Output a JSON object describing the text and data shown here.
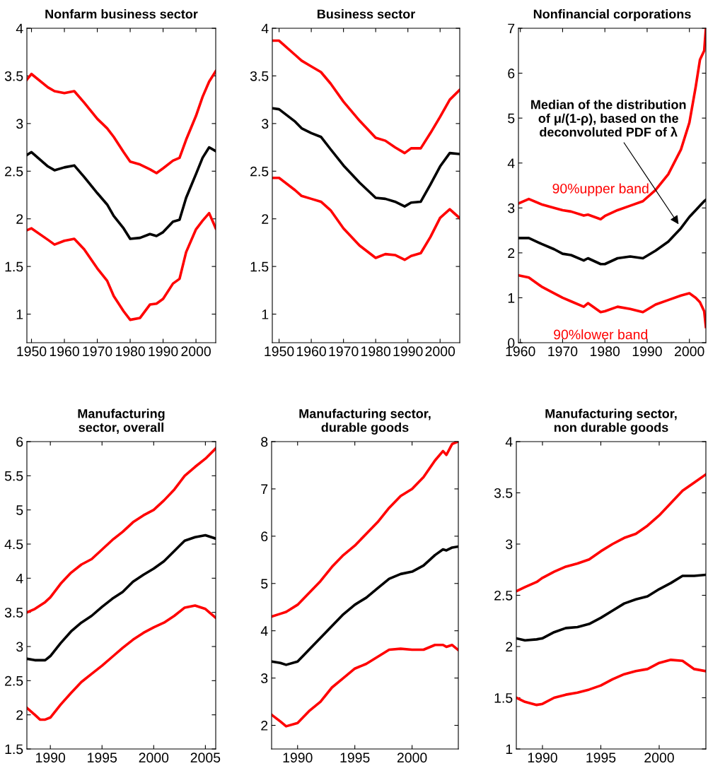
{
  "chart_data": [
    {
      "type": "line",
      "title": "Nonfarm business sector",
      "xlim": [
        1948.6,
        2006
      ],
      "xticks": [
        1950,
        1960,
        1970,
        1980,
        1990,
        2000
      ],
      "ylim": [
        0.7,
        4
      ],
      "yticks": [
        1,
        1.5,
        2,
        2.5,
        3,
        3.5,
        4
      ],
      "x": [
        1948.6,
        1950,
        1955,
        1957,
        1960,
        1963,
        1966,
        1970,
        1973,
        1975,
        1978,
        1980,
        1983,
        1986,
        1988,
        1990,
        1993,
        1995,
        1997,
        2000,
        2002,
        2004,
        2006
      ],
      "series": [
        {
          "color": "#ff0000",
          "values": [
            3.46,
            3.52,
            3.38,
            3.34,
            3.32,
            3.34,
            3.22,
            3.05,
            2.95,
            2.86,
            2.7,
            2.6,
            2.57,
            2.52,
            2.48,
            2.53,
            2.61,
            2.64,
            2.83,
            3.08,
            3.28,
            3.44,
            3.55
          ]
        },
        {
          "color": "#000000",
          "values": [
            2.67,
            2.7,
            2.55,
            2.51,
            2.54,
            2.56,
            2.44,
            2.27,
            2.15,
            2.03,
            1.9,
            1.79,
            1.8,
            1.84,
            1.82,
            1.86,
            1.97,
            1.99,
            2.22,
            2.47,
            2.64,
            2.75,
            2.71
          ]
        },
        {
          "color": "#ff0000",
          "values": [
            1.88,
            1.9,
            1.78,
            1.73,
            1.77,
            1.79,
            1.68,
            1.48,
            1.35,
            1.19,
            1.03,
            0.94,
            0.96,
            1.1,
            1.11,
            1.16,
            1.32,
            1.37,
            1.65,
            1.89,
            1.98,
            2.06,
            1.9
          ]
        }
      ]
    },
    {
      "type": "line",
      "title": "Business sector",
      "xlim": [
        1947.9,
        2006.1
      ],
      "xticks": [
        1950,
        1960,
        1970,
        1980,
        1990,
        2000
      ],
      "ylim": [
        0.7,
        4
      ],
      "yticks": [
        1,
        1.5,
        2,
        2.5,
        3,
        3.5,
        4
      ],
      "x": [
        1948,
        1950,
        1955,
        1957,
        1960,
        1963,
        1966,
        1970,
        1975,
        1980,
        1983,
        1986,
        1989,
        1991,
        1994,
        1997,
        2000,
        2003,
        2006
      ],
      "series": [
        {
          "color": "#ff0000",
          "values": [
            3.87,
            3.87,
            3.72,
            3.66,
            3.6,
            3.54,
            3.42,
            3.23,
            3.03,
            2.85,
            2.82,
            2.75,
            2.69,
            2.74,
            2.74,
            2.9,
            3.07,
            3.25,
            3.35
          ]
        },
        {
          "color": "#000000",
          "values": [
            3.16,
            3.15,
            3.02,
            2.95,
            2.9,
            2.86,
            2.73,
            2.56,
            2.38,
            2.22,
            2.21,
            2.18,
            2.13,
            2.17,
            2.18,
            2.36,
            2.55,
            2.69,
            2.68
          ]
        },
        {
          "color": "#ff0000",
          "values": [
            2.43,
            2.43,
            2.3,
            2.24,
            2.21,
            2.18,
            2.09,
            1.9,
            1.72,
            1.59,
            1.63,
            1.62,
            1.57,
            1.61,
            1.64,
            1.81,
            2.01,
            2.1,
            2.01
          ]
        }
      ]
    },
    {
      "type": "line",
      "title": "Nonfinancial corporations",
      "xlim": [
        1959.55,
        2003.9
      ],
      "xticks": [
        1960,
        1970,
        1980,
        1990,
        2000
      ],
      "ylim": [
        0,
        7
      ],
      "yticks": [
        0,
        1,
        2,
        3,
        4,
        5,
        6,
        7
      ],
      "x": [
        1959.6,
        1962,
        1965,
        1968,
        1970,
        1972,
        1975,
        1976,
        1979,
        1980,
        1983,
        1986,
        1989,
        1992,
        1995,
        1998,
        2000,
        2001.5,
        2002.5,
        2003.5,
        2003.9
      ],
      "series": [
        {
          "name": "90%upper band",
          "color": "#ff0000",
          "values": [
            3.1,
            3.2,
            3.08,
            3.0,
            2.95,
            2.92,
            2.83,
            2.85,
            2.75,
            2.82,
            2.95,
            3.05,
            3.15,
            3.4,
            3.75,
            4.3,
            4.9,
            5.7,
            6.3,
            6.5,
            7.0
          ]
        },
        {
          "color": "#000000",
          "values": [
            2.33,
            2.33,
            2.2,
            2.08,
            1.98,
            1.95,
            1.83,
            1.88,
            1.75,
            1.75,
            1.88,
            1.92,
            1.88,
            2.05,
            2.25,
            2.55,
            2.8,
            2.95,
            3.05,
            3.15,
            3.18
          ]
        },
        {
          "name": "90%lower band",
          "color": "#ff0000",
          "values": [
            1.5,
            1.45,
            1.25,
            1.1,
            1.0,
            0.92,
            0.8,
            0.88,
            0.68,
            0.7,
            0.8,
            0.75,
            0.68,
            0.85,
            0.95,
            1.05,
            1.1,
            1.0,
            0.9,
            0.7,
            0.35
          ]
        }
      ],
      "annotations": [
        {
          "text": "Median of the distribution\nof μ/(1-ρ), based on the\ndeconvoluted PDF of λ",
          "x": 1997.7,
          "y": 2.6
        }
      ]
    },
    {
      "type": "line",
      "title": "Manufacturing\nsector, overall",
      "xlim": [
        1987.73,
        2006
      ],
      "xticks": [
        1990,
        1995,
        2000,
        2005
      ],
      "ylim": [
        1.5,
        6
      ],
      "yticks": [
        1.5,
        2,
        2.5,
        3,
        3.5,
        4,
        4.5,
        5,
        5.5,
        6
      ],
      "x": [
        1987.75,
        1988.5,
        1989,
        1989.5,
        1990,
        1991,
        1992,
        1993,
        1994,
        1995,
        1996,
        1997,
        1998,
        1999,
        2000,
        2001,
        2002,
        2003,
        2004,
        2005,
        2006
      ],
      "series": [
        {
          "color": "#ff0000",
          "values": [
            3.5,
            3.55,
            3.6,
            3.65,
            3.72,
            3.92,
            4.08,
            4.2,
            4.28,
            4.42,
            4.56,
            4.68,
            4.82,
            4.92,
            5.0,
            5.14,
            5.3,
            5.5,
            5.63,
            5.75,
            5.9
          ]
        },
        {
          "color": "#000000",
          "values": [
            2.82,
            2.8,
            2.8,
            2.8,
            2.86,
            3.05,
            3.22,
            3.35,
            3.45,
            3.58,
            3.7,
            3.8,
            3.95,
            4.05,
            4.14,
            4.25,
            4.4,
            4.55,
            4.6,
            4.63,
            4.58
          ]
        },
        {
          "color": "#ff0000",
          "values": [
            2.1,
            2.0,
            1.93,
            1.93,
            1.96,
            2.15,
            2.32,
            2.48,
            2.6,
            2.72,
            2.85,
            2.98,
            3.1,
            3.2,
            3.28,
            3.35,
            3.45,
            3.57,
            3.6,
            3.55,
            3.42
          ]
        }
      ]
    },
    {
      "type": "line",
      "title": "Manufacturing sector,\ndurable goods",
      "xlim": [
        1987.73,
        2004.04
      ],
      "xticks": [
        1990,
        1995,
        2000
      ],
      "ylim": [
        1.5,
        8
      ],
      "yticks": [
        2,
        3,
        4,
        5,
        6,
        7,
        8
      ],
      "x": [
        1987.75,
        1988.5,
        1989,
        1990,
        1991,
        1992,
        1993,
        1994,
        1995,
        1996,
        1997,
        1998,
        1999,
        2000,
        2001,
        2002,
        2002.7,
        2003,
        2003.5,
        2004
      ],
      "series": [
        {
          "color": "#ff0000",
          "values": [
            4.3,
            4.36,
            4.4,
            4.55,
            4.8,
            5.05,
            5.35,
            5.6,
            5.8,
            6.05,
            6.3,
            6.6,
            6.85,
            7.0,
            7.25,
            7.6,
            7.8,
            7.72,
            7.95,
            8.0
          ]
        },
        {
          "color": "#000000",
          "values": [
            3.35,
            3.32,
            3.28,
            3.35,
            3.6,
            3.85,
            4.1,
            4.35,
            4.55,
            4.7,
            4.9,
            5.1,
            5.2,
            5.25,
            5.38,
            5.6,
            5.72,
            5.7,
            5.76,
            5.78
          ]
        },
        {
          "color": "#ff0000",
          "values": [
            2.22,
            2.08,
            1.98,
            2.05,
            2.3,
            2.5,
            2.8,
            3.0,
            3.2,
            3.3,
            3.45,
            3.6,
            3.62,
            3.6,
            3.6,
            3.7,
            3.7,
            3.66,
            3.7,
            3.6
          ]
        }
      ]
    },
    {
      "type": "line",
      "title": "Manufacturing sector,\nnon durable goods",
      "xlim": [
        1987.76,
        2004
      ],
      "xticks": [
        1990,
        1995,
        2000
      ],
      "ylim": [
        1,
        4
      ],
      "yticks": [
        1,
        1.5,
        2,
        2.5,
        3,
        3.5,
        4
      ],
      "x": [
        1987.76,
        1988.5,
        1989.5,
        1990,
        1991,
        1992,
        1993,
        1994,
        1995,
        1996,
        1997,
        1998,
        1999,
        2000,
        2001,
        2002,
        2003,
        2004
      ],
      "series": [
        {
          "color": "#ff0000",
          "values": [
            2.54,
            2.58,
            2.63,
            2.67,
            2.73,
            2.78,
            2.81,
            2.85,
            2.93,
            3.0,
            3.06,
            3.1,
            3.18,
            3.28,
            3.4,
            3.52,
            3.6,
            3.68
          ]
        },
        {
          "color": "#000000",
          "values": [
            2.08,
            2.06,
            2.07,
            2.08,
            2.14,
            2.18,
            2.19,
            2.22,
            2.28,
            2.35,
            2.42,
            2.46,
            2.49,
            2.56,
            2.62,
            2.69,
            2.69,
            2.7
          ]
        },
        {
          "color": "#ff0000",
          "values": [
            1.5,
            1.46,
            1.43,
            1.44,
            1.5,
            1.53,
            1.55,
            1.58,
            1.62,
            1.68,
            1.73,
            1.76,
            1.78,
            1.84,
            1.87,
            1.86,
            1.78,
            1.76
          ]
        }
      ]
    }
  ]
}
